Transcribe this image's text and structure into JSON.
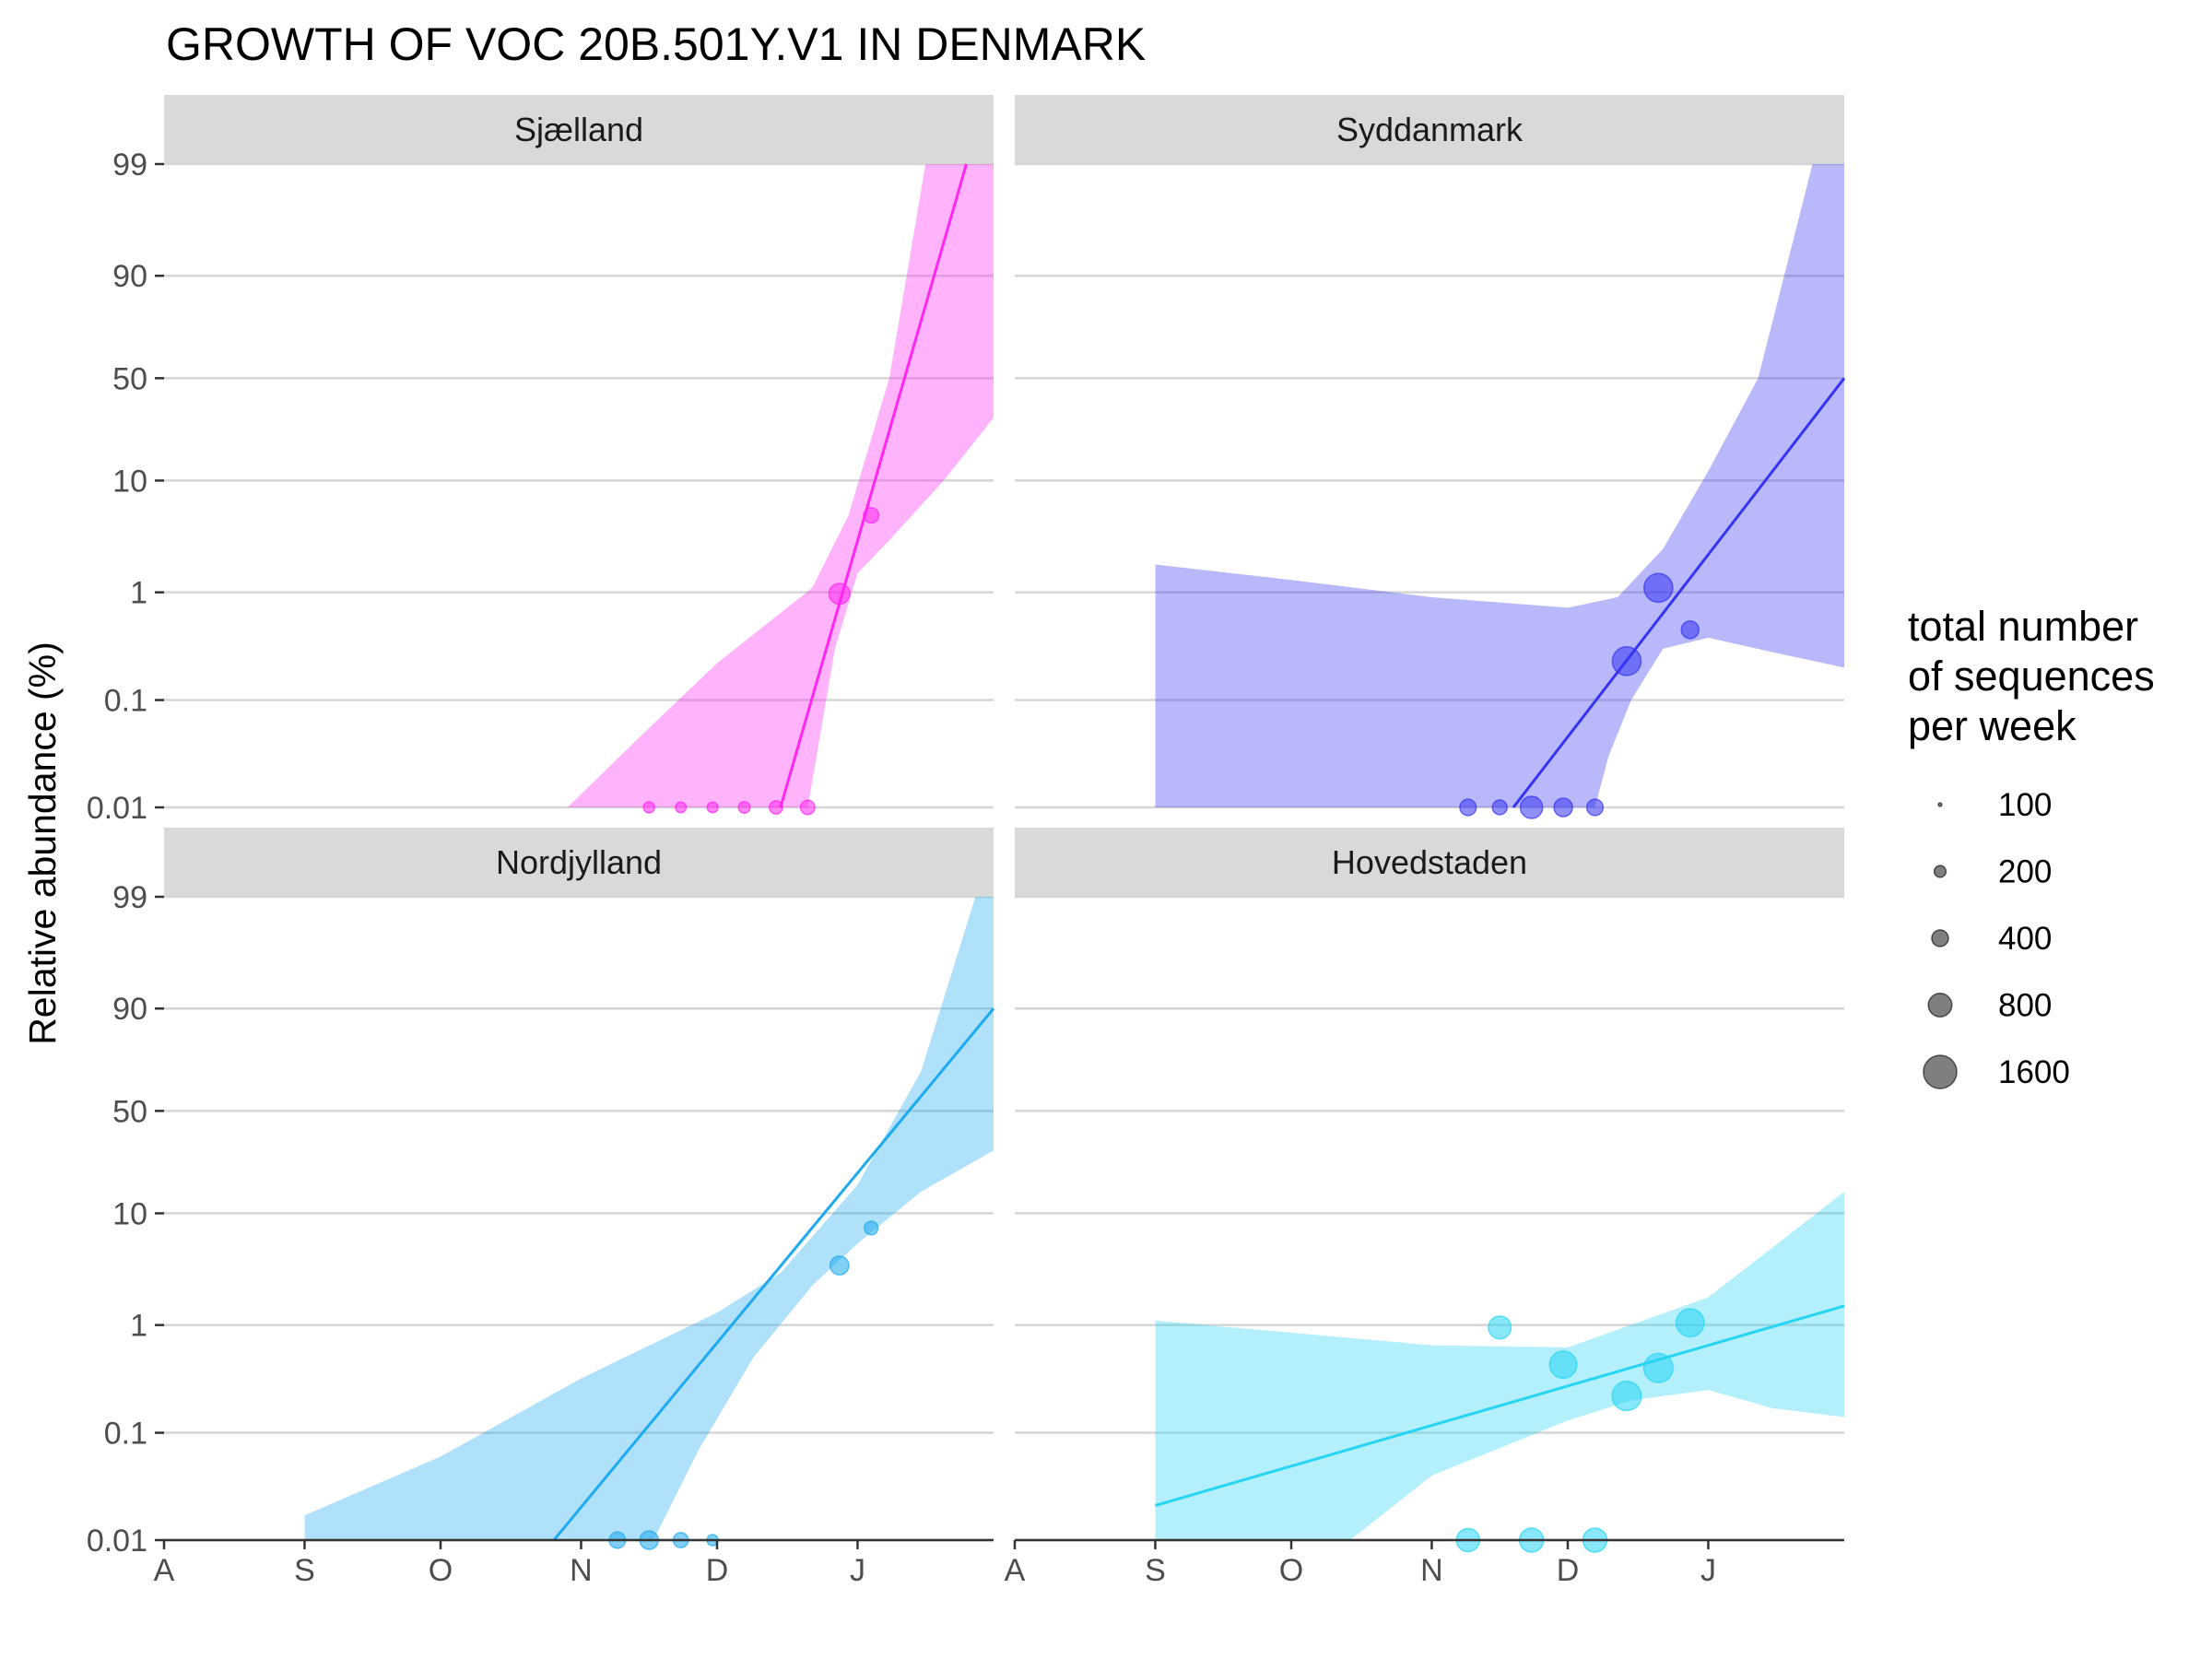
{
  "chart_data": {
    "type": "scatter",
    "title": "GROWTH OF VOC 20B.501Y.V1 IN DENMARK",
    "xlabel": "",
    "ylabel": "Relative abundance (%)",
    "x_scale": "date",
    "xlim": [
      "2020-08-01",
      "2021-01-31"
    ],
    "x_ticks": [
      "2020-08-01",
      "2020-09-01",
      "2020-10-01",
      "2020-11-01",
      "2020-12-01",
      "2021-01-01"
    ],
    "x_tick_labels": [
      "A",
      "S",
      "O",
      "N",
      "D",
      "J"
    ],
    "y_scale": "logit",
    "ylim": [
      0.01,
      99
    ],
    "y_ticks": [
      0.01,
      0.1,
      1,
      10,
      50,
      90,
      99
    ],
    "y_tick_labels": [
      "0.01",
      "0.1",
      "1",
      "10",
      "50",
      "90",
      "99"
    ],
    "grid": true,
    "legend": {
      "title": "total number\nof sequences\nper week",
      "title_lines": [
        "total number",
        "of sequences",
        "per week"
      ],
      "position": "right",
      "sizes": [
        100,
        200,
        400,
        800,
        1600
      ],
      "labels": [
        "100",
        "200",
        "400",
        "800",
        "1600"
      ]
    },
    "panels": [
      {
        "name": "Sjælland",
        "color": "#FF26F0",
        "points": [
          {
            "x": "2020-11-16",
            "y": 0.01,
            "n": 120
          },
          {
            "x": "2020-11-23",
            "y": 0.01,
            "n": 110
          },
          {
            "x": "2020-11-30",
            "y": 0.01,
            "n": 110
          },
          {
            "x": "2020-12-07",
            "y": 0.01,
            "n": 130
          },
          {
            "x": "2020-12-14",
            "y": 0.01,
            "n": 170
          },
          {
            "x": "2020-12-21",
            "y": 0.01,
            "n": 200
          },
          {
            "x": "2020-12-28",
            "y": 0.97,
            "n": 420
          },
          {
            "x": "2021-01-04",
            "y": 5.0,
            "n": 230
          }
        ],
        "fit": [
          {
            "x": "2020-12-15",
            "y": 0.01
          },
          {
            "x": "2021-01-25",
            "y": 99
          }
        ],
        "ci_upper": [
          {
            "x": "2020-10-29",
            "y": 0.01
          },
          {
            "x": "2020-11-15",
            "y": 0.05
          },
          {
            "x": "2020-12-01",
            "y": 0.22
          },
          {
            "x": "2020-12-22",
            "y": 1.1
          },
          {
            "x": "2020-12-30",
            "y": 5.0
          },
          {
            "x": "2021-01-08",
            "y": 50
          },
          {
            "x": "2021-01-16",
            "y": 99
          },
          {
            "x": "2021-01-31",
            "y": 99
          }
        ],
        "ci_lower": [
          {
            "x": "2021-01-31",
            "y": 30
          },
          {
            "x": "2021-01-20",
            "y": 10
          },
          {
            "x": "2021-01-08",
            "y": 3.0
          },
          {
            "x": "2021-01-01",
            "y": 1.5
          },
          {
            "x": "2020-12-27",
            "y": 0.3
          },
          {
            "x": "2020-12-21",
            "y": 0.01
          },
          {
            "x": "2020-10-29",
            "y": 0.01
          }
        ]
      },
      {
        "name": "Syddanmark",
        "color": "#3434F2",
        "points": [
          {
            "x": "2020-11-09",
            "y": 0.01,
            "n": 260
          },
          {
            "x": "2020-11-16",
            "y": 0.01,
            "n": 210
          },
          {
            "x": "2020-11-23",
            "y": 0.01,
            "n": 480
          },
          {
            "x": "2020-11-30",
            "y": 0.01,
            "n": 330
          },
          {
            "x": "2020-12-07",
            "y": 0.01,
            "n": 260
          },
          {
            "x": "2020-12-14",
            "y": 0.23,
            "n": 800
          },
          {
            "x": "2020-12-21",
            "y": 1.1,
            "n": 800
          },
          {
            "x": "2020-12-28",
            "y": 0.45,
            "n": 300
          }
        ],
        "fit": [
          {
            "x": "2020-11-19",
            "y": 0.01
          },
          {
            "x": "2021-01-31",
            "y": 50
          }
        ],
        "ci_upper": [
          {
            "x": "2020-09-01",
            "y": 1.8
          },
          {
            "x": "2020-10-01",
            "y": 1.3
          },
          {
            "x": "2020-11-01",
            "y": 0.9
          },
          {
            "x": "2020-12-01",
            "y": 0.72
          },
          {
            "x": "2020-12-12",
            "y": 0.9
          },
          {
            "x": "2020-12-22",
            "y": 2.5
          },
          {
            "x": "2021-01-01",
            "y": 12
          },
          {
            "x": "2021-01-12",
            "y": 50
          },
          {
            "x": "2021-01-24",
            "y": 99
          },
          {
            "x": "2021-01-31",
            "y": 99
          }
        ],
        "ci_lower": [
          {
            "x": "2021-01-31",
            "y": 0.2
          },
          {
            "x": "2021-01-15",
            "y": 0.28
          },
          {
            "x": "2021-01-01",
            "y": 0.38
          },
          {
            "x": "2020-12-22",
            "y": 0.3
          },
          {
            "x": "2020-12-15",
            "y": 0.1
          },
          {
            "x": "2020-12-10",
            "y": 0.03
          },
          {
            "x": "2020-12-07",
            "y": 0.01
          },
          {
            "x": "2020-09-01",
            "y": 0.01
          }
        ]
      },
      {
        "name": "Nordjylland",
        "color": "#1EAAF0",
        "points": [
          {
            "x": "2020-11-09",
            "y": 0.01,
            "n": 260
          },
          {
            "x": "2020-11-16",
            "y": 0.01,
            "n": 330
          },
          {
            "x": "2020-11-23",
            "y": 0.01,
            "n": 220
          },
          {
            "x": "2020-11-30",
            "y": 0.01,
            "n": 120
          },
          {
            "x": "2020-12-28",
            "y": 3.5,
            "n": 340
          },
          {
            "x": "2021-01-04",
            "y": 7.5,
            "n": 180
          }
        ],
        "fit": [
          {
            "x": "2020-10-26",
            "y": 0.01
          },
          {
            "x": "2021-01-31",
            "y": 90
          }
        ],
        "ci_upper": [
          {
            "x": "2020-09-01",
            "y": 0.017
          },
          {
            "x": "2020-10-01",
            "y": 0.06
          },
          {
            "x": "2020-11-01",
            "y": 0.32
          },
          {
            "x": "2020-12-01",
            "y": 1.3
          },
          {
            "x": "2020-12-15",
            "y": 3.0
          },
          {
            "x": "2021-01-01",
            "y": 17
          },
          {
            "x": "2021-01-15",
            "y": 70
          },
          {
            "x": "2021-01-27",
            "y": 99
          },
          {
            "x": "2021-01-31",
            "y": 99
          }
        ],
        "ci_lower": [
          {
            "x": "2021-01-31",
            "y": 30
          },
          {
            "x": "2021-01-15",
            "y": 15
          },
          {
            "x": "2021-01-01",
            "y": 5.5
          },
          {
            "x": "2020-12-22",
            "y": 2.3
          },
          {
            "x": "2020-12-09",
            "y": 0.5
          },
          {
            "x": "2020-11-27",
            "y": 0.07
          },
          {
            "x": "2020-11-17",
            "y": 0.01
          },
          {
            "x": "2020-09-01",
            "y": 0.01
          }
        ]
      },
      {
        "name": "Hovedstaden",
        "color": "#26D4F4",
        "points": [
          {
            "x": "2020-11-09",
            "y": 0.01,
            "n": 520
          },
          {
            "x": "2020-11-16",
            "y": 0.95,
            "n": 500
          },
          {
            "x": "2020-11-23",
            "y": 0.01,
            "n": 560
          },
          {
            "x": "2020-11-30",
            "y": 0.43,
            "n": 720
          },
          {
            "x": "2020-12-07",
            "y": 0.01,
            "n": 560
          },
          {
            "x": "2020-12-14",
            "y": 0.22,
            "n": 830
          },
          {
            "x": "2020-12-21",
            "y": 0.4,
            "n": 830
          },
          {
            "x": "2020-12-28",
            "y": 1.05,
            "n": 760
          }
        ],
        "fit": [
          {
            "x": "2020-09-01",
            "y": 0.021
          },
          {
            "x": "2021-01-31",
            "y": 1.5
          }
        ],
        "ci_upper": [
          {
            "x": "2020-09-01",
            "y": 1.1
          },
          {
            "x": "2020-10-01",
            "y": 0.85
          },
          {
            "x": "2020-11-01",
            "y": 0.65
          },
          {
            "x": "2020-12-01",
            "y": 0.62
          },
          {
            "x": "2021-01-01",
            "y": 1.8
          },
          {
            "x": "2021-01-15",
            "y": 5.0
          },
          {
            "x": "2021-01-31",
            "y": 15
          }
        ],
        "ci_lower": [
          {
            "x": "2021-01-31",
            "y": 0.14
          },
          {
            "x": "2021-01-15",
            "y": 0.17
          },
          {
            "x": "2021-01-01",
            "y": 0.25
          },
          {
            "x": "2020-12-15",
            "y": 0.2
          },
          {
            "x": "2020-12-01",
            "y": 0.13
          },
          {
            "x": "2020-11-01",
            "y": 0.04
          },
          {
            "x": "2020-10-14",
            "y": 0.01
          },
          {
            "x": "2020-09-01",
            "y": 0.01
          }
        ]
      }
    ]
  }
}
